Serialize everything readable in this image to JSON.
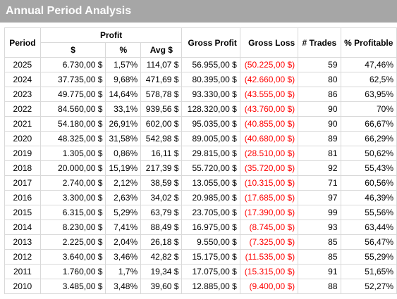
{
  "title": "Annual Period Analysis",
  "headers": {
    "period": "Period",
    "profit": "Profit",
    "dollar": "$",
    "percent": "%",
    "avg": "Avg $",
    "gross_profit": "Gross Profit",
    "gross_loss": "Gross Loss",
    "trades": "# Trades",
    "pct_profitable": "% Profitable"
  },
  "rows": [
    {
      "period": "2025",
      "dollar": "6.730,00 $",
      "percent": "1,57%",
      "avg": "114,07 $",
      "gross_profit": "56.955,00 $",
      "gross_loss": "(50.225,00 $)",
      "trades": "59",
      "pct_profitable": "47,46%"
    },
    {
      "period": "2024",
      "dollar": "37.735,00 $",
      "percent": "9,68%",
      "avg": "471,69 $",
      "gross_profit": "80.395,00 $",
      "gross_loss": "(42.660,00 $)",
      "trades": "80",
      "pct_profitable": "62,5%"
    },
    {
      "period": "2023",
      "dollar": "49.775,00 $",
      "percent": "14,64%",
      "avg": "578,78 $",
      "gross_profit": "93.330,00 $",
      "gross_loss": "(43.555,00 $)",
      "trades": "86",
      "pct_profitable": "63,95%"
    },
    {
      "period": "2022",
      "dollar": "84.560,00 $",
      "percent": "33,1%",
      "avg": "939,56 $",
      "gross_profit": "128.320,00 $",
      "gross_loss": "(43.760,00 $)",
      "trades": "90",
      "pct_profitable": "70%"
    },
    {
      "period": "2021",
      "dollar": "54.180,00 $",
      "percent": "26,91%",
      "avg": "602,00 $",
      "gross_profit": "95.035,00 $",
      "gross_loss": "(40.855,00 $)",
      "trades": "90",
      "pct_profitable": "66,67%"
    },
    {
      "period": "2020",
      "dollar": "48.325,00 $",
      "percent": "31,58%",
      "avg": "542,98 $",
      "gross_profit": "89.005,00 $",
      "gross_loss": "(40.680,00 $)",
      "trades": "89",
      "pct_profitable": "66,29%"
    },
    {
      "period": "2019",
      "dollar": "1.305,00 $",
      "percent": "0,86%",
      "avg": "16,11 $",
      "gross_profit": "29.815,00 $",
      "gross_loss": "(28.510,00 $)",
      "trades": "81",
      "pct_profitable": "50,62%"
    },
    {
      "period": "2018",
      "dollar": "20.000,00 $",
      "percent": "15,19%",
      "avg": "217,39 $",
      "gross_profit": "55.720,00 $",
      "gross_loss": "(35.720,00 $)",
      "trades": "92",
      "pct_profitable": "55,43%"
    },
    {
      "period": "2017",
      "dollar": "2.740,00 $",
      "percent": "2,12%",
      "avg": "38,59 $",
      "gross_profit": "13.055,00 $",
      "gross_loss": "(10.315,00 $)",
      "trades": "71",
      "pct_profitable": "60,56%"
    },
    {
      "period": "2016",
      "dollar": "3.300,00 $",
      "percent": "2,63%",
      "avg": "34,02 $",
      "gross_profit": "20.985,00 $",
      "gross_loss": "(17.685,00 $)",
      "trades": "97",
      "pct_profitable": "46,39%"
    },
    {
      "period": "2015",
      "dollar": "6.315,00 $",
      "percent": "5,29%",
      "avg": "63,79 $",
      "gross_profit": "23.705,00 $",
      "gross_loss": "(17.390,00 $)",
      "trades": "99",
      "pct_profitable": "55,56%"
    },
    {
      "period": "2014",
      "dollar": "8.230,00 $",
      "percent": "7,41%",
      "avg": "88,49 $",
      "gross_profit": "16.975,00 $",
      "gross_loss": "(8.745,00 $)",
      "trades": "93",
      "pct_profitable": "63,44%"
    },
    {
      "period": "2013",
      "dollar": "2.225,00 $",
      "percent": "2,04%",
      "avg": "26,18 $",
      "gross_profit": "9.550,00 $",
      "gross_loss": "(7.325,00 $)",
      "trades": "85",
      "pct_profitable": "56,47%"
    },
    {
      "period": "2012",
      "dollar": "3.640,00 $",
      "percent": "3,46%",
      "avg": "42,82 $",
      "gross_profit": "15.175,00 $",
      "gross_loss": "(11.535,00 $)",
      "trades": "85",
      "pct_profitable": "55,29%"
    },
    {
      "period": "2011",
      "dollar": "1.760,00 $",
      "percent": "1,7%",
      "avg": "19,34 $",
      "gross_profit": "17.075,00 $",
      "gross_loss": "(15.315,00 $)",
      "trades": "91",
      "pct_profitable": "51,65%"
    },
    {
      "period": "2010",
      "dollar": "3.485,00 $",
      "percent": "3,48%",
      "avg": "39,60 $",
      "gross_profit": "12.885,00 $",
      "gross_loss": "(9.400,00 $)",
      "trades": "88",
      "pct_profitable": "52,27%"
    }
  ],
  "colors": {
    "title_bar": "#a6a6a6",
    "title_text": "#ffffff",
    "loss_text": "#ff0000",
    "grid": "#d9d9d9"
  }
}
